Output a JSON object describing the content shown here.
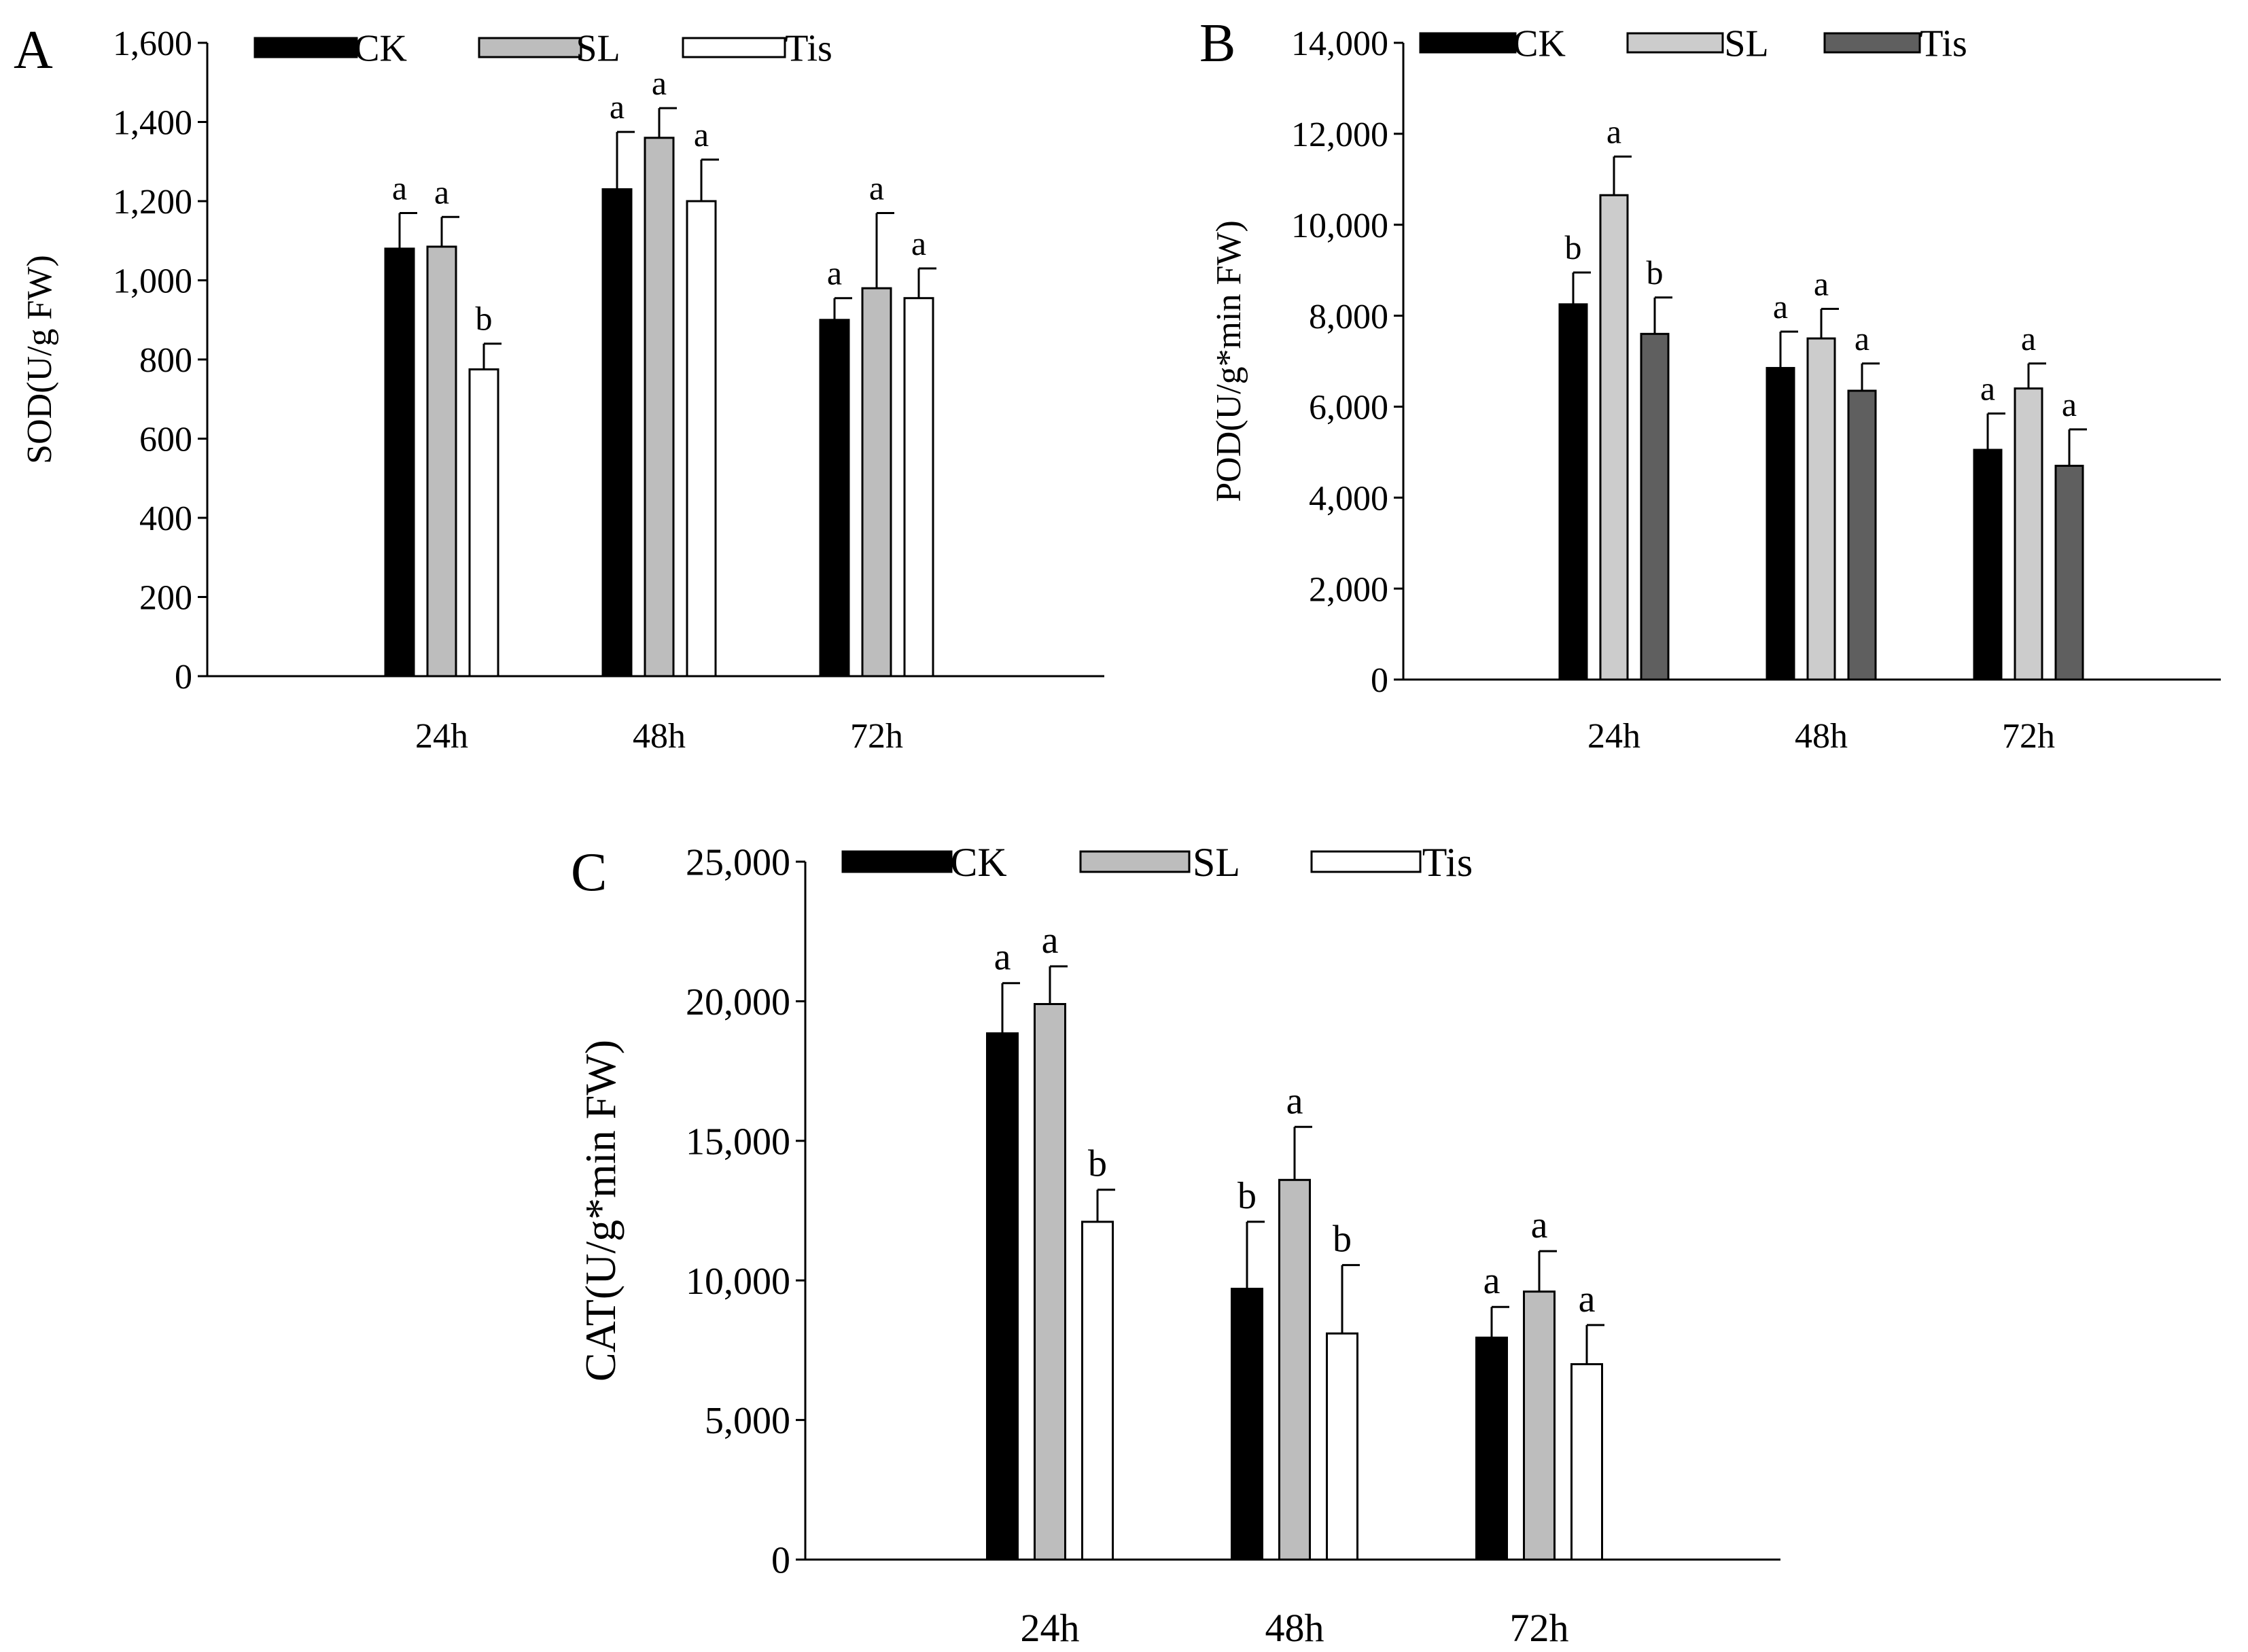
{
  "figure": {
    "colors": {
      "black": "#000000",
      "gray": "#bdbdbd",
      "light_gray": "#cccccc",
      "dark_gray": "#5f5f5f",
      "white": "#ffffff"
    }
  },
  "chart_data": [
    {
      "id": "A",
      "panel_label": "A",
      "type": "bar",
      "title": "",
      "xlabel": "",
      "ylabel": "SOD(U/g FW)",
      "ylim": [
        0,
        1600
      ],
      "yticks": [
        0,
        200,
        400,
        600,
        800,
        1000,
        1200,
        1400,
        1600
      ],
      "ytick_labels": [
        "0",
        "200",
        "400",
        "600",
        "800",
        "1,000",
        "1,200",
        "1,400",
        "1,600"
      ],
      "categories": [
        "24h",
        "48h",
        "72h"
      ],
      "legend_position": "top",
      "series": [
        {
          "name": "CK",
          "color": "#000000",
          "values": [
            1080,
            1230,
            900
          ],
          "errors": [
            90,
            145,
            55
          ],
          "letters": [
            "a",
            "a",
            "a"
          ]
        },
        {
          "name": "SL",
          "color": "#bdbdbd",
          "values": [
            1085,
            1360,
            980
          ],
          "errors": [
            75,
            75,
            190
          ],
          "letters": [
            "a",
            "a",
            "a"
          ]
        },
        {
          "name": "Tis",
          "color": "#ffffff",
          "values": [
            775,
            1200,
            955
          ],
          "errors": [
            65,
            105,
            75
          ],
          "letters": [
            "b",
            "a",
            "a"
          ]
        }
      ]
    },
    {
      "id": "B",
      "panel_label": "B",
      "type": "bar",
      "title": "",
      "xlabel": "",
      "ylabel": "POD(U/g*min FW)",
      "ylim": [
        0,
        14000
      ],
      "yticks": [
        0,
        2000,
        4000,
        6000,
        8000,
        10000,
        12000,
        14000
      ],
      "ytick_labels": [
        "0",
        "2,000",
        "4,000",
        "6,000",
        "8,000",
        "10,000",
        "12,000",
        "14,000"
      ],
      "categories": [
        "24h",
        "48h",
        "72h"
      ],
      "legend_position": "top",
      "series": [
        {
          "name": "CK",
          "color": "#000000",
          "values": [
            8250,
            6850,
            5050
          ],
          "errors": [
            700,
            800,
            800
          ],
          "letters": [
            "b",
            "a",
            "a"
          ]
        },
        {
          "name": "SL",
          "color": "#cccccc",
          "values": [
            10650,
            7500,
            6400
          ],
          "errors": [
            850,
            650,
            550
          ],
          "letters": [
            "a",
            "a",
            "a"
          ]
        },
        {
          "name": "Tis",
          "color": "#5f5f5f",
          "values": [
            7600,
            6350,
            4700
          ],
          "errors": [
            800,
            600,
            800
          ],
          "letters": [
            "b",
            "a",
            "a"
          ]
        }
      ]
    },
    {
      "id": "C",
      "panel_label": "C",
      "type": "bar",
      "title": "",
      "xlabel": "",
      "ylabel": "CAT(U/g*min FW)",
      "ylim": [
        0,
        25000
      ],
      "yticks": [
        0,
        5000,
        10000,
        15000,
        20000,
        25000
      ],
      "ytick_labels": [
        "0",
        "5,000",
        "10,000",
        "15,000",
        "20,000",
        "25,000"
      ],
      "categories": [
        "24h",
        "48h",
        "72h"
      ],
      "legend_position": "top",
      "series": [
        {
          "name": "CK",
          "color": "#000000",
          "values": [
            18850,
            9700,
            7950
          ],
          "errors": [
            1800,
            2400,
            1100
          ],
          "letters": [
            "a",
            "b",
            "a"
          ]
        },
        {
          "name": "SL",
          "color": "#bdbdbd",
          "values": [
            19900,
            13600,
            9600
          ],
          "errors": [
            1350,
            1900,
            1450
          ],
          "letters": [
            "a",
            "a",
            "a"
          ]
        },
        {
          "name": "Tis",
          "color": "#ffffff",
          "values": [
            12100,
            8100,
            7000
          ],
          "errors": [
            1150,
            2450,
            1400
          ],
          "letters": [
            "b",
            "b",
            "a"
          ]
        }
      ]
    }
  ]
}
